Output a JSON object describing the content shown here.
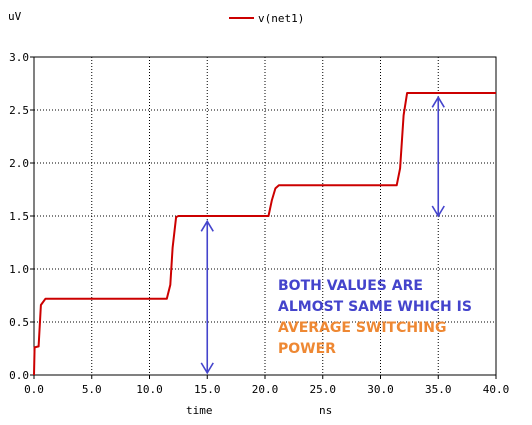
{
  "chart_data": {
    "type": "line",
    "xlabel": "time",
    "xunit": "ns",
    "ylabel": "uV",
    "xlim": [
      0,
      40
    ],
    "ylim": [
      0,
      3
    ],
    "xticks": [
      "0.0",
      "5.0",
      "10.0",
      "15.0",
      "20.0",
      "25.0",
      "30.0",
      "35.0",
      "40.0"
    ],
    "yticks": [
      "0.0",
      "0.5",
      "1.0",
      "1.5",
      "2.0",
      "2.5",
      "3.0"
    ],
    "grid": true,
    "legend_position": "top-center",
    "series": [
      {
        "name": "v(net1)",
        "color": "#cc0000",
        "x": [
          0.0,
          0.05,
          0.4,
          0.6,
          1.0,
          11.5,
          11.8,
          12.0,
          12.3,
          12.5,
          20.3,
          20.6,
          20.9,
          21.2,
          31.4,
          31.7,
          32.0,
          32.3,
          40.0
        ],
        "y": [
          0.0,
          0.26,
          0.27,
          0.66,
          0.72,
          0.72,
          0.85,
          1.2,
          1.49,
          1.5,
          1.5,
          1.65,
          1.76,
          1.79,
          1.79,
          1.95,
          2.45,
          2.66,
          2.66
        ]
      }
    ],
    "annotations": {
      "arrow_color": "#4444cc",
      "arrows": [
        {
          "x": 15.0,
          "y_from": 0.02,
          "y_to": 1.45
        },
        {
          "x": 35.0,
          "y_from": 1.5,
          "y_to": 2.62
        }
      ],
      "text_lines": [
        {
          "text": "BOTH VALUES ARE",
          "color": "#4444cc"
        },
        {
          "text": "ALMOST SAME WHICH IS",
          "color": "#4444cc"
        },
        {
          "text": "AVERAGE SWITCHING",
          "color": "#ee8833"
        },
        {
          "text": "POWER",
          "color": "#ee8833"
        }
      ]
    }
  }
}
